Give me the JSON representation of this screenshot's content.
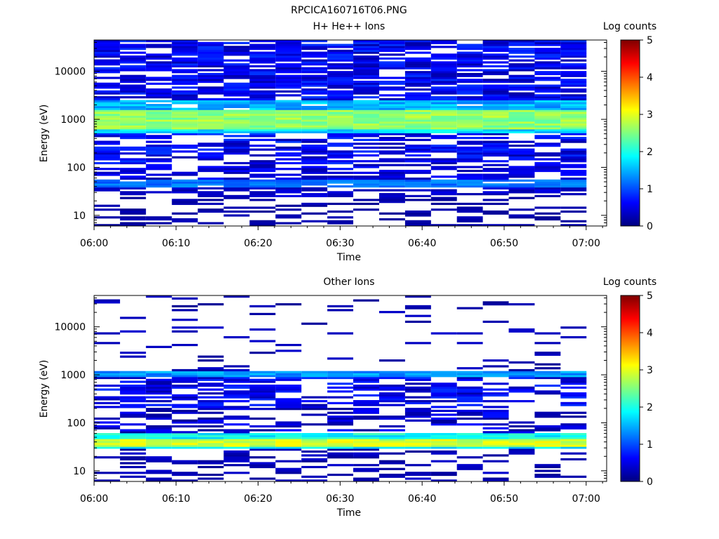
{
  "figure_title": "RPCICA160716T06.PNG",
  "colormap_stops": [
    "#00007f",
    "#0000ff",
    "#0080ff",
    "#00ffff",
    "#80ff80",
    "#ffff00",
    "#ff8000",
    "#ff0000",
    "#7f0000"
  ],
  "chart_data": [
    {
      "type": "heatmap",
      "title": "H+ He++ Ions",
      "xlabel": "Time",
      "ylabel": "Energy (eV)",
      "x_tick_labels": [
        "06:00",
        "06:10",
        "06:20",
        "06:30",
        "06:40",
        "06:50",
        "07:00"
      ],
      "x_ticks_min": [
        0,
        10,
        20,
        30,
        40,
        50,
        60
      ],
      "xlim_min": [
        0,
        62.5
      ],
      "y_scale": "log",
      "y_tick_labels": [
        "10",
        "100",
        "1000",
        "10000"
      ],
      "y_ticks": [
        10,
        100,
        1000,
        10000
      ],
      "ylim": [
        6,
        45000
      ],
      "colorbar": {
        "label": "Log counts",
        "range": [
          0,
          5
        ],
        "tick_labels": [
          "0",
          "1",
          "2",
          "3",
          "4",
          "5"
        ]
      },
      "time_bin_min": 3.16,
      "n_time_bins": 19,
      "n_energy_bins": 96,
      "bands": [
        {
          "e_lo": 650,
          "e_hi": 1600,
          "v_min": 2.3,
          "v_max": 2.9,
          "fill": 1.0
        },
        {
          "e_lo": 500,
          "e_hi": 650,
          "v_min": 1.4,
          "v_max": 2.0,
          "fill": 1.0
        },
        {
          "e_lo": 1600,
          "e_hi": 2500,
          "v_min": 1.2,
          "v_max": 1.8,
          "fill": 0.95
        },
        {
          "e_lo": 2500,
          "e_hi": 45000,
          "v_min": 0.2,
          "v_max": 0.9,
          "fill": 0.75
        },
        {
          "e_lo": 120,
          "e_hi": 500,
          "v_min": 0.2,
          "v_max": 0.9,
          "fill": 0.6
        },
        {
          "e_lo": 38,
          "e_hi": 55,
          "v_min": 1.0,
          "v_max": 1.4,
          "fill": 0.9
        },
        {
          "e_lo": 55,
          "e_hi": 120,
          "v_min": 0.2,
          "v_max": 0.7,
          "fill": 0.55
        },
        {
          "e_lo": 25,
          "e_hi": 38,
          "v_min": 0.2,
          "v_max": 0.5,
          "fill": 0.5
        },
        {
          "e_lo": 6,
          "e_hi": 25,
          "v_min": 0.1,
          "v_max": 0.3,
          "fill": 0.3
        }
      ]
    },
    {
      "type": "heatmap",
      "title": "Other Ions",
      "xlabel": "Time",
      "ylabel": "Energy (eV)",
      "x_tick_labels": [
        "06:00",
        "06:10",
        "06:20",
        "06:30",
        "06:40",
        "06:50",
        "07:00"
      ],
      "x_ticks_min": [
        0,
        10,
        20,
        30,
        40,
        50,
        60
      ],
      "xlim_min": [
        0,
        62.5
      ],
      "y_scale": "log",
      "y_tick_labels": [
        "10",
        "100",
        "1000",
        "10000"
      ],
      "y_ticks": [
        10,
        100,
        1000,
        10000
      ],
      "ylim": [
        6,
        45000
      ],
      "colorbar": {
        "label": "Log counts",
        "range": [
          0,
          5
        ],
        "tick_labels": [
          "0",
          "1",
          "2",
          "3",
          "4",
          "5"
        ]
      },
      "time_bin_min": 3.16,
      "n_time_bins": 19,
      "n_energy_bins": 96,
      "bands": [
        {
          "e_lo": 33,
          "e_hi": 48,
          "v_min": 2.6,
          "v_max": 3.2,
          "fill": 1.0
        },
        {
          "e_lo": 28,
          "e_hi": 33,
          "v_min": 1.5,
          "v_max": 2.0,
          "fill": 1.0
        },
        {
          "e_lo": 48,
          "e_hi": 60,
          "v_min": 1.6,
          "v_max": 2.2,
          "fill": 1.0
        },
        {
          "e_lo": 900,
          "e_hi": 1200,
          "v_min": 1.1,
          "v_max": 1.6,
          "fill": 1.0
        },
        {
          "e_lo": 200,
          "e_hi": 900,
          "v_min": 0.2,
          "v_max": 0.9,
          "fill": 0.55
        },
        {
          "e_lo": 60,
          "e_hi": 200,
          "v_min": 0.1,
          "v_max": 0.7,
          "fill": 0.45
        },
        {
          "e_lo": 1200,
          "e_hi": 45000,
          "v_min": 0.1,
          "v_max": 0.4,
          "fill": 0.12
        },
        {
          "e_lo": 6,
          "e_hi": 28,
          "v_min": 0.1,
          "v_max": 0.4,
          "fill": 0.35
        }
      ]
    }
  ]
}
